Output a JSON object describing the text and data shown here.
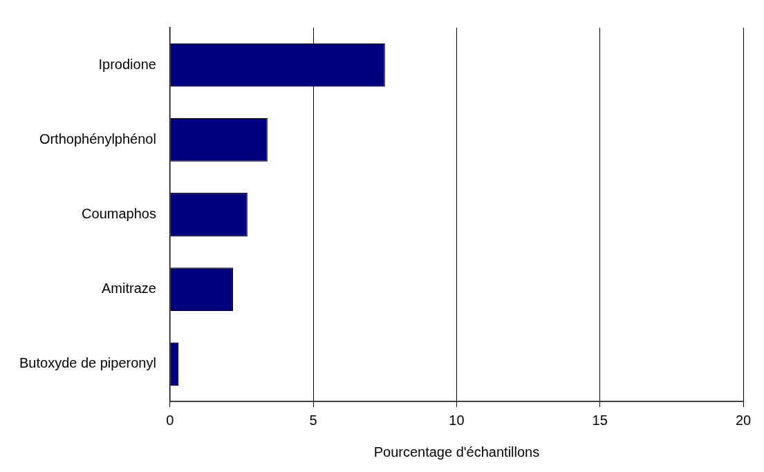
{
  "chart_data": {
    "type": "bar",
    "orientation": "horizontal",
    "xlabel": "Pourcentage d'échantillons",
    "categories": [
      "Iprodione",
      "Orthophénylphénol",
      "Coumaphos",
      "Amitraze",
      "Butoxyde de piperonyl"
    ],
    "values": [
      7.5,
      3.4,
      2.7,
      2.2,
      0.3
    ],
    "color": "#000080",
    "xlim": [
      0,
      20
    ],
    "xticks": [
      0,
      5,
      10,
      15,
      20
    ],
    "grid": "x",
    "legend": false
  }
}
